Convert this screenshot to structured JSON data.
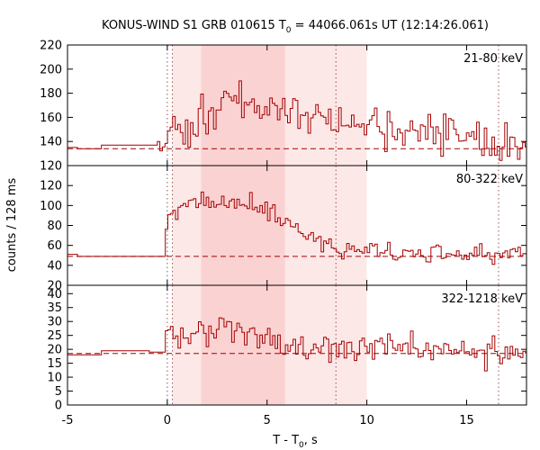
{
  "chart_data": {
    "type": "line",
    "title_prefix": "KONUS-WIND S1 GRB 010615 T",
    "title_sub": "0",
    "title_suffix": " = 44066.061s UT (12:14:26.061)",
    "xlabel_prefix": "T - T",
    "xlabel_sub": "0",
    "xlabel_suffix": ", s",
    "ylabel": "counts / 128 ms",
    "xlim": [
      -5,
      18
    ],
    "xticks": [
      "-5",
      "0",
      "5",
      "10",
      "15"
    ],
    "xtick_values": [
      -5,
      0,
      5,
      10,
      15
    ],
    "shaded_intervals": [
      {
        "x": [
          0.256,
          10.0
        ],
        "shade": "light"
      },
      {
        "x": [
          1.7,
          5.9
        ],
        "shade": "dark"
      }
    ],
    "vertical_markers": [
      0.0,
      0.256,
      8.45,
      16.6
    ],
    "line_color": "#a50000",
    "panels": [
      {
        "band": "21-80 keV",
        "ylim": [
          120,
          220
        ],
        "yticks": [
          "120",
          "140",
          "160",
          "180",
          "200",
          "220"
        ],
        "ytick_values": [
          120,
          140,
          160,
          180,
          200,
          220
        ],
        "background": 134,
        "pre_trigger": [
          {
            "x": [
              -5.0,
              -4.5
            ],
            "y": 135
          },
          {
            "x": [
              -4.5,
              -3.3
            ],
            "y": 134
          },
          {
            "x": [
              -3.3,
              -0.5
            ],
            "y": 137
          }
        ],
        "seed": 11,
        "profile": [
          [
            -0.5,
            134
          ],
          [
            0.0,
            134
          ],
          [
            0.1,
            150
          ],
          [
            1.0,
            152
          ],
          [
            1.8,
            165
          ],
          [
            3.0,
            172
          ],
          [
            4.5,
            170
          ],
          [
            6.0,
            165
          ],
          [
            8.5,
            158
          ],
          [
            10.0,
            152
          ],
          [
            12.0,
            145
          ],
          [
            15.0,
            143
          ],
          [
            18.0,
            140
          ]
        ],
        "noise": 14
      },
      {
        "band": "80-322 keV",
        "ylim": [
          20,
          140
        ],
        "yticks": [
          "20",
          "40",
          "60",
          "80",
          "100",
          "120"
        ],
        "ytick_values": [
          20,
          40,
          60,
          80,
          100,
          120
        ],
        "background": 49,
        "pre_trigger": [
          {
            "x": [
              -5.0,
              -4.5
            ],
            "y": 51
          },
          {
            "x": [
              -4.5,
              -0.9
            ],
            "y": 49
          },
          {
            "x": [
              -0.9,
              -0.1
            ],
            "y": 49
          }
        ],
        "seed": 23,
        "profile": [
          [
            -0.1,
            49
          ],
          [
            0.0,
            90
          ],
          [
            0.5,
            98
          ],
          [
            1.8,
            100
          ],
          [
            3.0,
            104
          ],
          [
            4.0,
            100
          ],
          [
            5.5,
            90
          ],
          [
            7.0,
            70
          ],
          [
            8.5,
            58
          ],
          [
            10.0,
            55
          ],
          [
            12.0,
            53
          ],
          [
            15.0,
            52
          ],
          [
            18.0,
            52
          ]
        ],
        "noise": 9
      },
      {
        "band": "322-1218 keV",
        "ylim": [
          0,
          43
        ],
        "yticks": [
          "0",
          "5",
          "10",
          "15",
          "20",
          "25",
          "30",
          "35",
          "40"
        ],
        "ytick_values": [
          0,
          5,
          10,
          15,
          20,
          25,
          30,
          35,
          40
        ],
        "background": 18.5,
        "pre_trigger": [
          {
            "x": [
              -5.0,
              -4.5
            ],
            "y": 18
          },
          {
            "x": [
              -4.5,
              -3.3
            ],
            "y": 18
          },
          {
            "x": [
              -3.3,
              -0.9
            ],
            "y": 19.5
          },
          {
            "x": [
              -0.9,
              -0.1
            ],
            "y": 19
          }
        ],
        "seed": 37,
        "profile": [
          [
            -0.1,
            19
          ],
          [
            0.0,
            28
          ],
          [
            0.5,
            24
          ],
          [
            1.7,
            26
          ],
          [
            3.0,
            27
          ],
          [
            4.5,
            25
          ],
          [
            6.0,
            22
          ],
          [
            8.0,
            21
          ],
          [
            10.0,
            20
          ],
          [
            13.0,
            19
          ],
          [
            18.0,
            19
          ]
        ],
        "noise": 5
      }
    ]
  }
}
